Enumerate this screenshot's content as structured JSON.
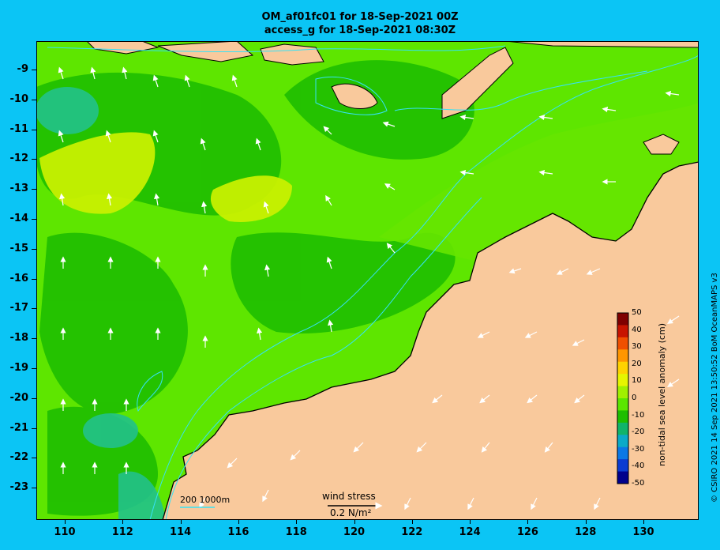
{
  "title": {
    "line1": "OM_af01fc01 for 18-Sep-2021 00Z",
    "line2": "access_g for 18-Sep-2021 08:30Z"
  },
  "map": {
    "lon_ticks": [
      "110",
      "112",
      "114",
      "116",
      "118",
      "120",
      "122",
      "124",
      "126",
      "128",
      "130"
    ],
    "lat_ticks": [
      "-9",
      "-10",
      "-11",
      "-12",
      "-13",
      "-14",
      "-15",
      "-16",
      "-17",
      "-18",
      "-19",
      "-20",
      "-21",
      "-22",
      "-23"
    ],
    "land_color": "#f9c99c",
    "ocean_color": "#33d100"
  },
  "colorbar": {
    "title": "non-tidal sea level anomaly (cm)",
    "ticks": [
      "50",
      "40",
      "30",
      "20",
      "10",
      "0",
      "-10",
      "-20",
      "-30",
      "-40",
      "-50"
    ],
    "colors": [
      "#7f0000",
      "#c81400",
      "#f05000",
      "#ff9600",
      "#ffd200",
      "#e6f500",
      "#a0f000",
      "#5ae600",
      "#1ebe00",
      "#10b46a",
      "#0aaac8",
      "#0a78e6",
      "#0a3cd2",
      "#00008c"
    ]
  },
  "legend": {
    "depth_label": "200  1000m",
    "wind_label": "wind stress",
    "wind_unit": "0.2 N/m²"
  },
  "credit": "© CSIRO 2021  14 Sep 2021 13:50:52 BoM OceanMAPS v3"
}
